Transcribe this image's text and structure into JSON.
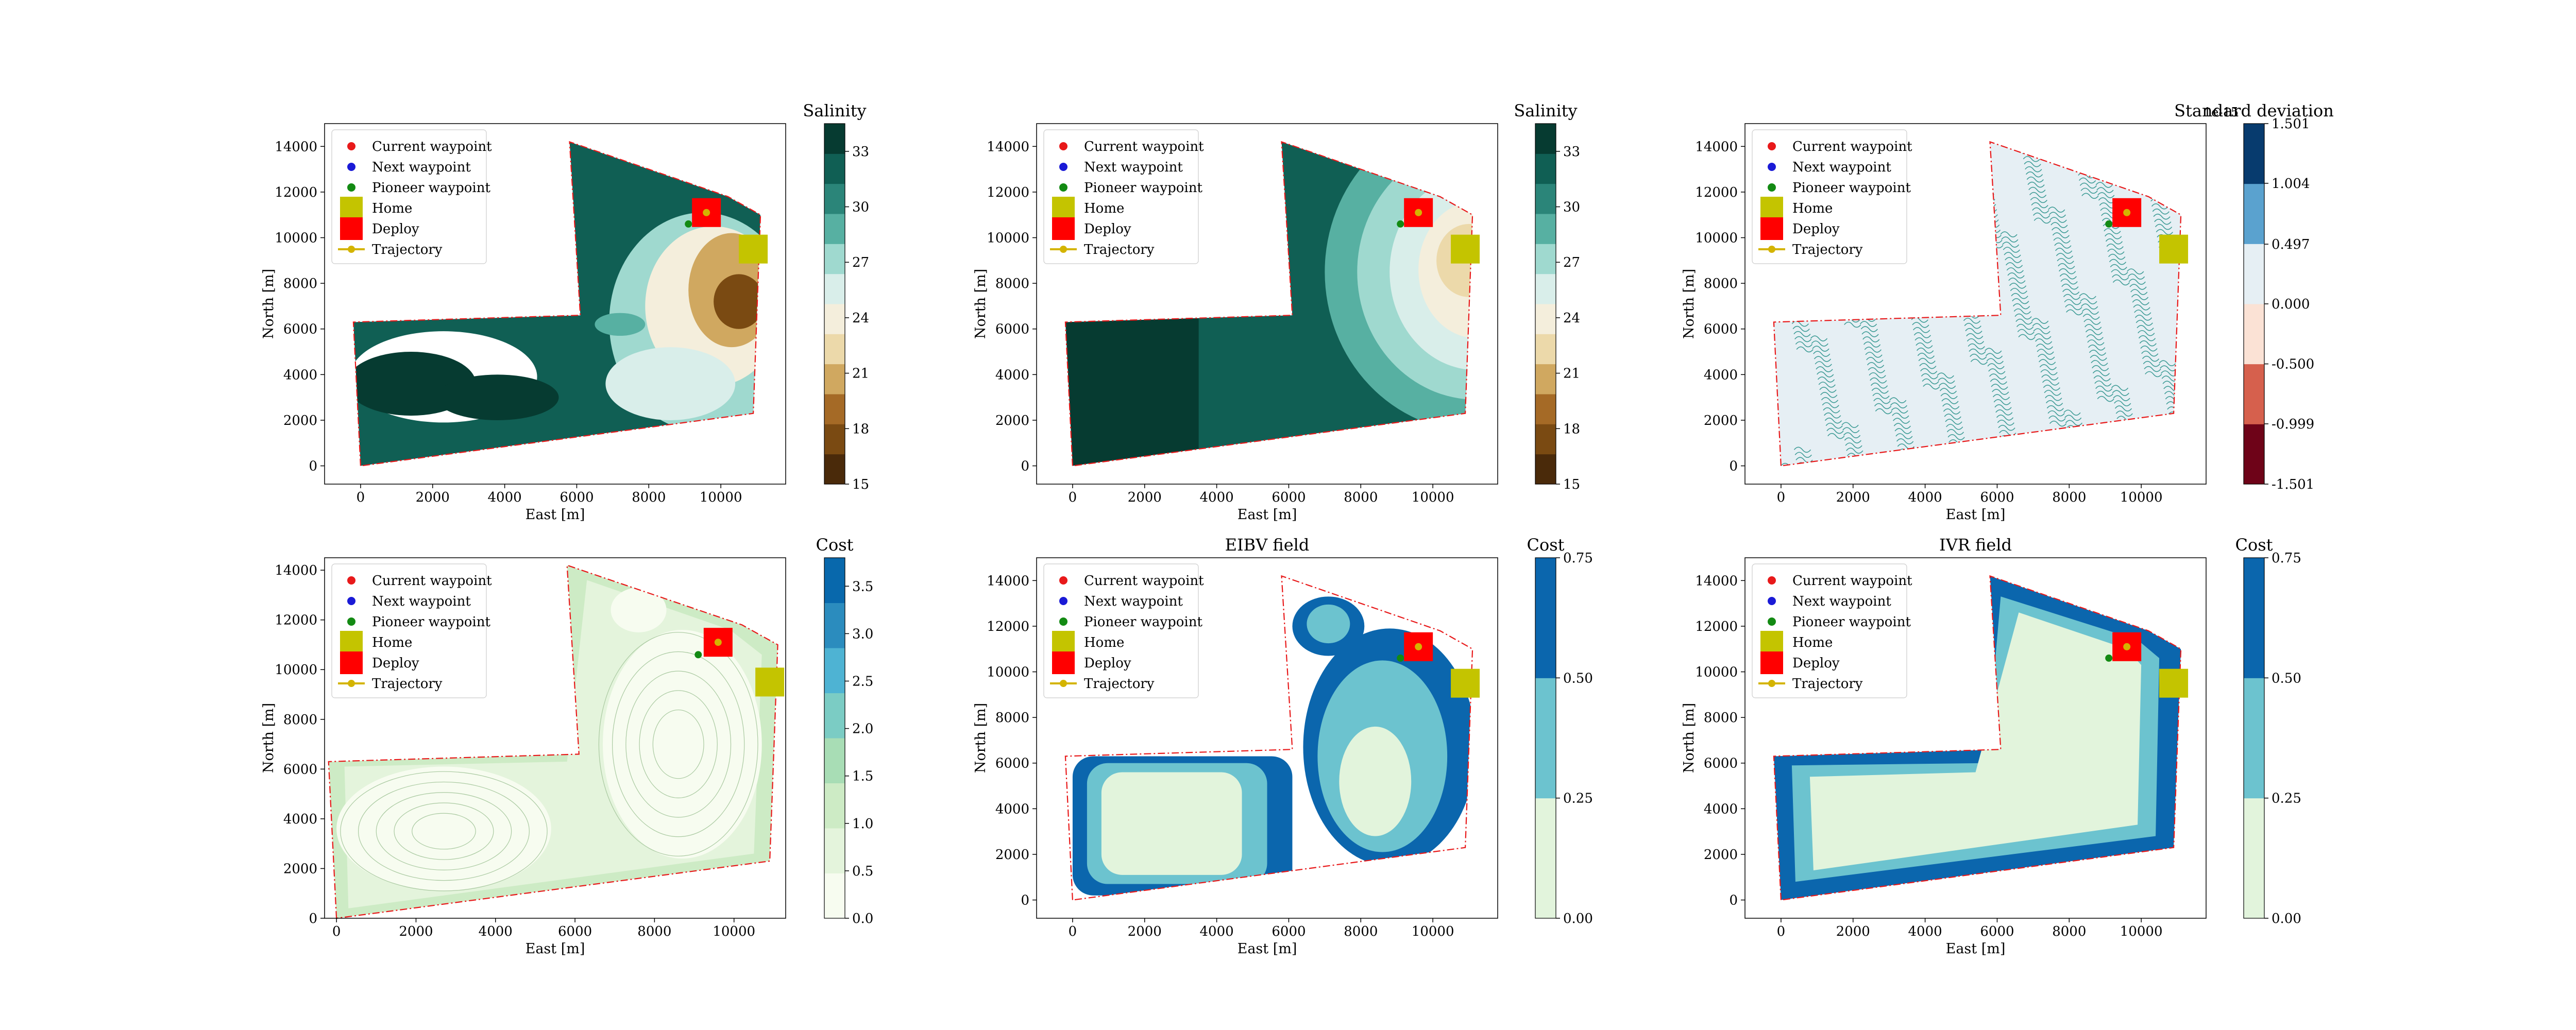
{
  "legend": {
    "current": "Current waypoint",
    "next": "Next waypoint",
    "pioneer": "Pioneer waypoint",
    "home": "Home",
    "deploy": "Deploy",
    "trajectory": "Trajectory"
  },
  "colors": {
    "current_waypoint": "#e8191a",
    "next_waypoint": "#1a1ad6",
    "pioneer_waypoint": "#138a13",
    "home": "#c4c400",
    "deploy": "#ff0000",
    "trajectory": "#d4b400",
    "boundary": "#e8191a"
  },
  "chart_data": [
    {
      "type": "heatmap",
      "title": "",
      "xlabel": "East [m]",
      "ylabel": "North [m]",
      "xlim": [
        -1000,
        11800
      ],
      "ylim": [
        -800,
        15000
      ],
      "x_ticks": [
        "0",
        "2000",
        "4000",
        "6000",
        "8000",
        "10000"
      ],
      "y_ticks": [
        "0",
        "2000",
        "4000",
        "6000",
        "8000",
        "10000",
        "12000",
        "14000"
      ],
      "colorbar": {
        "label": "Salinity",
        "range": [
          15,
          34.5
        ],
        "ticks": [
          "15",
          "18",
          "21",
          "24",
          "27",
          "30",
          "33"
        ],
        "colors": [
          "#4a2a0a",
          "#7a4a12",
          "#a56a26",
          "#d0a860",
          "#ecd9aa",
          "#f4eedc",
          "#d9eeea",
          "#9fd9cf",
          "#57b0a2",
          "#2b8579",
          "#105f54",
          "#063b31"
        ]
      },
      "legend_placement": "upper-left"
    },
    {
      "type": "heatmap",
      "title": "",
      "xlabel": "East [m]",
      "ylabel": "North [m]",
      "xlim": [
        -1000,
        11800
      ],
      "ylim": [
        -800,
        15000
      ],
      "x_ticks": [
        "0",
        "2000",
        "4000",
        "6000",
        "8000",
        "10000"
      ],
      "y_ticks": [
        "0",
        "2000",
        "4000",
        "6000",
        "8000",
        "10000",
        "12000",
        "14000"
      ],
      "colorbar": {
        "label": "Salinity",
        "range": [
          15,
          34.5
        ],
        "ticks": [
          "15",
          "18",
          "21",
          "24",
          "27",
          "30",
          "33"
        ],
        "colors": [
          "#4a2a0a",
          "#7a4a12",
          "#a56a26",
          "#d0a860",
          "#ecd9aa",
          "#f4eedc",
          "#d9eeea",
          "#9fd9cf",
          "#57b0a2",
          "#2b8579",
          "#105f54",
          "#063b31"
        ]
      },
      "legend_placement": "upper-left"
    },
    {
      "type": "heatmap",
      "title": "",
      "xlabel": "East [m]",
      "ylabel": "North [m]",
      "xlim": [
        -1000,
        11800
      ],
      "ylim": [
        -800,
        15000
      ],
      "x_ticks": [
        "0",
        "2000",
        "4000",
        "6000",
        "8000",
        "10000"
      ],
      "y_ticks": [
        "0",
        "2000",
        "4000",
        "6000",
        "8000",
        "10000",
        "12000",
        "14000"
      ],
      "colorbar": {
        "label": "Standard deviation",
        "offset_text": "1e-15",
        "range": [
          -1.501,
          1.501
        ],
        "ticks": [
          "-1.501",
          "-0.999",
          "-0.500",
          "0.000",
          "0.497",
          "1.004",
          "1.501"
        ],
        "colors": [
          "#6e0318",
          "#d6604d",
          "#fbe2d5",
          "#e6eff4",
          "#5aa2cf",
          "#073b6e"
        ]
      },
      "legend_placement": "upper-left"
    },
    {
      "type": "heatmap",
      "title": "",
      "xlabel": "East [m]",
      "ylabel": "North [m]",
      "xlim": [
        -300,
        11300
      ],
      "ylim": [
        0,
        14500
      ],
      "x_ticks": [
        "0",
        "2000",
        "4000",
        "6000",
        "8000",
        "10000"
      ],
      "y_ticks": [
        "0",
        "2000",
        "4000",
        "6000",
        "8000",
        "10000",
        "12000",
        "14000"
      ],
      "colorbar": {
        "label": "Cost",
        "range": [
          0.0,
          3.8
        ],
        "ticks": [
          "0.0",
          "0.5",
          "1.0",
          "1.5",
          "2.0",
          "2.5",
          "3.0",
          "3.5"
        ],
        "colors": [
          "#f7fcf0",
          "#e4f4dc",
          "#cdebc5",
          "#a8ddb5",
          "#7bccc4",
          "#4eb3d3",
          "#2b8cbe",
          "#0868ac"
        ]
      },
      "legend_placement": "upper-left"
    },
    {
      "type": "heatmap",
      "title": "EIBV field",
      "xlabel": "East [m]",
      "ylabel": "North [m]",
      "xlim": [
        -1000,
        11800
      ],
      "ylim": [
        -800,
        15000
      ],
      "x_ticks": [
        "0",
        "2000",
        "4000",
        "6000",
        "8000",
        "10000"
      ],
      "y_ticks": [
        "0",
        "2000",
        "4000",
        "6000",
        "8000",
        "10000",
        "12000",
        "14000"
      ],
      "colorbar": {
        "label": "Cost",
        "range": [
          0.0,
          0.75
        ],
        "ticks": [
          "0.00",
          "0.25",
          "0.50",
          "0.75"
        ],
        "colors": [
          "#e2f4dc",
          "#6cc3cf",
          "#0b66ad"
        ]
      },
      "legend_placement": "upper-left"
    },
    {
      "type": "heatmap",
      "title": "IVR field",
      "xlabel": "East [m]",
      "ylabel": "North [m]",
      "xlim": [
        -1000,
        11800
      ],
      "ylim": [
        -800,
        15000
      ],
      "x_ticks": [
        "0",
        "2000",
        "4000",
        "6000",
        "8000",
        "10000"
      ],
      "y_ticks": [
        "0",
        "2000",
        "4000",
        "6000",
        "8000",
        "10000",
        "12000",
        "14000"
      ],
      "colorbar": {
        "label": "Cost",
        "range": [
          0.0,
          0.75
        ],
        "ticks": [
          "0.00",
          "0.25",
          "0.50",
          "0.75"
        ],
        "colors": [
          "#e2f4dc",
          "#6cc3cf",
          "#0b66ad"
        ]
      },
      "legend_placement": "upper-left"
    }
  ]
}
